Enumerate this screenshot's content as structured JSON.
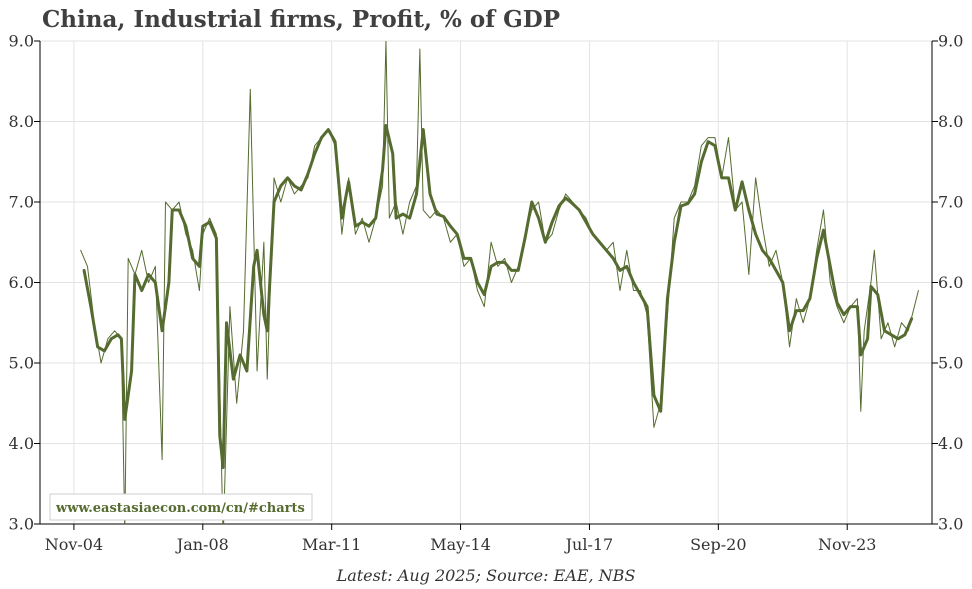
{
  "title": "China, Industrial firms, Profit, % of GDP",
  "footnote": "Latest: Aug 2025; Source: EAE, NBS",
  "watermark": "www.eastasiaecon.com/cn/#charts",
  "colors": {
    "line": "#556b2f",
    "grid": "#e3e3e3",
    "axis": "#000000"
  },
  "chart_data": {
    "type": "line",
    "title": "China, Industrial firms, Profit, % of GDP",
    "xlabel": "",
    "ylabel": "",
    "ylim": [
      3.0,
      9.0
    ],
    "xlim": [
      "2004-01",
      "2025-12"
    ],
    "yticks": [
      "3.0",
      "4.0",
      "5.0",
      "6.0",
      "7.0",
      "8.0",
      "9.0"
    ],
    "xticks": [
      {
        "label": "Nov-04",
        "date": "2004-11"
      },
      {
        "label": "Jan-08",
        "date": "2008-01"
      },
      {
        "label": "Mar-11",
        "date": "2011-03"
      },
      {
        "label": "May-14",
        "date": "2014-05"
      },
      {
        "label": "Jul-17",
        "date": "2017-07"
      },
      {
        "label": "Sep-20",
        "date": "2020-09"
      },
      {
        "label": "Nov-23",
        "date": "2023-11"
      }
    ],
    "grid": true,
    "series": [
      {
        "style": "thin",
        "points": [
          [
            "2005-01",
            6.4
          ],
          [
            "2005-03",
            6.2
          ],
          [
            "2005-05",
            5.5
          ],
          [
            "2005-07",
            5.0
          ],
          [
            "2005-09",
            5.3
          ],
          [
            "2005-11",
            5.4
          ],
          [
            "2006-01",
            5.3
          ],
          [
            "2006-02",
            2.9
          ],
          [
            "2006-03",
            6.3
          ],
          [
            "2006-05",
            6.1
          ],
          [
            "2006-07",
            6.4
          ],
          [
            "2006-09",
            6.0
          ],
          [
            "2006-11",
            6.2
          ],
          [
            "2007-01",
            3.8
          ],
          [
            "2007-02",
            7.0
          ],
          [
            "2007-04",
            6.9
          ],
          [
            "2007-06",
            7.0
          ],
          [
            "2007-08",
            6.6
          ],
          [
            "2007-10",
            6.4
          ],
          [
            "2007-12",
            5.9
          ],
          [
            "2008-01",
            6.6
          ],
          [
            "2008-03",
            6.8
          ],
          [
            "2008-05",
            6.6
          ],
          [
            "2008-07",
            2.8
          ],
          [
            "2008-09",
            5.7
          ],
          [
            "2008-11",
            4.5
          ],
          [
            "2009-01",
            5.4
          ],
          [
            "2009-03",
            8.4
          ],
          [
            "2009-05",
            4.9
          ],
          [
            "2009-07",
            6.5
          ],
          [
            "2009-08",
            4.8
          ],
          [
            "2009-10",
            7.3
          ],
          [
            "2009-12",
            7.0
          ],
          [
            "2010-02",
            7.3
          ],
          [
            "2010-04",
            7.1
          ],
          [
            "2010-06",
            7.2
          ],
          [
            "2010-08",
            7.3
          ],
          [
            "2010-10",
            7.7
          ],
          [
            "2010-12",
            7.8
          ],
          [
            "2011-02",
            7.9
          ],
          [
            "2011-04",
            7.7
          ],
          [
            "2011-06",
            6.6
          ],
          [
            "2011-08",
            7.3
          ],
          [
            "2011-10",
            6.6
          ],
          [
            "2011-12",
            6.8
          ],
          [
            "2012-02",
            6.5
          ],
          [
            "2012-04",
            6.8
          ],
          [
            "2012-06",
            7.2
          ],
          [
            "2012-07",
            9.0
          ],
          [
            "2012-08",
            6.8
          ],
          [
            "2012-10",
            7.0
          ],
          [
            "2012-12",
            6.6
          ],
          [
            "2013-02",
            7.0
          ],
          [
            "2013-04",
            7.2
          ],
          [
            "2013-05",
            8.9
          ],
          [
            "2013-06",
            6.9
          ],
          [
            "2013-08",
            6.8
          ],
          [
            "2013-10",
            6.9
          ],
          [
            "2013-12",
            6.8
          ],
          [
            "2014-02",
            6.5
          ],
          [
            "2014-04",
            6.6
          ],
          [
            "2014-06",
            6.2
          ],
          [
            "2014-08",
            6.3
          ],
          [
            "2014-10",
            5.9
          ],
          [
            "2014-12",
            5.7
          ],
          [
            "2015-02",
            6.5
          ],
          [
            "2015-04",
            6.2
          ],
          [
            "2015-06",
            6.3
          ],
          [
            "2015-08",
            6.0
          ],
          [
            "2015-10",
            6.2
          ],
          [
            "2015-12",
            6.6
          ],
          [
            "2016-02",
            6.9
          ],
          [
            "2016-04",
            7.0
          ],
          [
            "2016-06",
            6.5
          ],
          [
            "2016-08",
            6.6
          ],
          [
            "2016-10",
            6.9
          ],
          [
            "2016-12",
            7.1
          ],
          [
            "2017-02",
            7.0
          ],
          [
            "2017-04",
            6.9
          ],
          [
            "2017-06",
            6.8
          ],
          [
            "2017-08",
            6.6
          ],
          [
            "2017-10",
            6.5
          ],
          [
            "2017-12",
            6.4
          ],
          [
            "2018-02",
            6.5
          ],
          [
            "2018-04",
            5.9
          ],
          [
            "2018-06",
            6.4
          ],
          [
            "2018-08",
            5.9
          ],
          [
            "2018-10",
            5.9
          ],
          [
            "2018-12",
            5.6
          ],
          [
            "2019-02",
            4.2
          ],
          [
            "2019-04",
            4.5
          ],
          [
            "2019-06",
            5.6
          ],
          [
            "2019-08",
            6.8
          ],
          [
            "2019-10",
            7.0
          ],
          [
            "2019-12",
            7.0
          ],
          [
            "2020-02",
            7.2
          ],
          [
            "2020-04",
            7.7
          ],
          [
            "2020-06",
            7.8
          ],
          [
            "2020-08",
            7.8
          ],
          [
            "2020-10",
            7.3
          ],
          [
            "2020-12",
            7.8
          ],
          [
            "2021-02",
            6.9
          ],
          [
            "2021-04",
            7.0
          ],
          [
            "2021-06",
            6.1
          ],
          [
            "2021-08",
            7.3
          ],
          [
            "2021-10",
            6.7
          ],
          [
            "2021-12",
            6.2
          ],
          [
            "2022-02",
            6.4
          ],
          [
            "2022-04",
            6.0
          ],
          [
            "2022-06",
            5.2
          ],
          [
            "2022-08",
            5.8
          ],
          [
            "2022-10",
            5.5
          ],
          [
            "2022-12",
            5.8
          ],
          [
            "2023-02",
            6.4
          ],
          [
            "2023-04",
            6.9
          ],
          [
            "2023-06",
            6.0
          ],
          [
            "2023-08",
            5.7
          ],
          [
            "2023-10",
            5.5
          ],
          [
            "2023-12",
            5.7
          ],
          [
            "2024-02",
            5.8
          ],
          [
            "2024-03",
            4.4
          ],
          [
            "2024-04",
            5.4
          ],
          [
            "2024-06",
            6.0
          ],
          [
            "2024-07",
            6.4
          ],
          [
            "2024-09",
            5.3
          ],
          [
            "2024-11",
            5.5
          ],
          [
            "2025-01",
            5.2
          ],
          [
            "2025-03",
            5.5
          ],
          [
            "2025-05",
            5.4
          ],
          [
            "2025-08",
            5.9
          ]
        ]
      },
      {
        "style": "thick",
        "points": [
          [
            "2005-02",
            6.15
          ],
          [
            "2005-04",
            5.7
          ],
          [
            "2005-06",
            5.2
          ],
          [
            "2005-08",
            5.15
          ],
          [
            "2005-10",
            5.3
          ],
          [
            "2005-12",
            5.35
          ],
          [
            "2006-01",
            5.3
          ],
          [
            "2006-02",
            4.3
          ],
          [
            "2006-04",
            4.9
          ],
          [
            "2006-05",
            6.1
          ],
          [
            "2006-07",
            5.9
          ],
          [
            "2006-09",
            6.1
          ],
          [
            "2006-11",
            6.0
          ],
          [
            "2007-01",
            5.4
          ],
          [
            "2007-03",
            6.0
          ],
          [
            "2007-04",
            6.9
          ],
          [
            "2007-06",
            6.9
          ],
          [
            "2007-08",
            6.7
          ],
          [
            "2007-10",
            6.3
          ],
          [
            "2007-12",
            6.2
          ],
          [
            "2008-01",
            6.7
          ],
          [
            "2008-03",
            6.75
          ],
          [
            "2008-05",
            6.55
          ],
          [
            "2008-06",
            4.1
          ],
          [
            "2008-07",
            3.7
          ],
          [
            "2008-08",
            5.5
          ],
          [
            "2008-10",
            4.8
          ],
          [
            "2008-12",
            5.1
          ],
          [
            "2009-02",
            4.9
          ],
          [
            "2009-04",
            6.2
          ],
          [
            "2009-05",
            6.4
          ],
          [
            "2009-07",
            5.6
          ],
          [
            "2009-08",
            5.4
          ],
          [
            "2009-10",
            7.0
          ],
          [
            "2009-12",
            7.2
          ],
          [
            "2010-02",
            7.3
          ],
          [
            "2010-04",
            7.2
          ],
          [
            "2010-06",
            7.15
          ],
          [
            "2010-08",
            7.35
          ],
          [
            "2010-10",
            7.6
          ],
          [
            "2010-12",
            7.8
          ],
          [
            "2011-02",
            7.9
          ],
          [
            "2011-04",
            7.75
          ],
          [
            "2011-06",
            6.8
          ],
          [
            "2011-08",
            7.25
          ],
          [
            "2011-10",
            6.7
          ],
          [
            "2011-12",
            6.75
          ],
          [
            "2012-02",
            6.7
          ],
          [
            "2012-04",
            6.8
          ],
          [
            "2012-06",
            7.4
          ],
          [
            "2012-07",
            7.95
          ],
          [
            "2012-09",
            7.6
          ],
          [
            "2012-10",
            6.8
          ],
          [
            "2012-12",
            6.85
          ],
          [
            "2013-02",
            6.8
          ],
          [
            "2013-04",
            7.1
          ],
          [
            "2013-06",
            7.9
          ],
          [
            "2013-08",
            7.1
          ],
          [
            "2013-10",
            6.85
          ],
          [
            "2013-12",
            6.82
          ],
          [
            "2014-02",
            6.7
          ],
          [
            "2014-04",
            6.6
          ],
          [
            "2014-06",
            6.3
          ],
          [
            "2014-08",
            6.3
          ],
          [
            "2014-10",
            6.0
          ],
          [
            "2014-12",
            5.85
          ],
          [
            "2015-02",
            6.2
          ],
          [
            "2015-04",
            6.25
          ],
          [
            "2015-06",
            6.25
          ],
          [
            "2015-08",
            6.15
          ],
          [
            "2015-10",
            6.15
          ],
          [
            "2015-12",
            6.55
          ],
          [
            "2016-02",
            7.0
          ],
          [
            "2016-04",
            6.8
          ],
          [
            "2016-06",
            6.5
          ],
          [
            "2016-08",
            6.75
          ],
          [
            "2016-10",
            6.95
          ],
          [
            "2016-12",
            7.05
          ],
          [
            "2017-02",
            6.98
          ],
          [
            "2017-04",
            6.9
          ],
          [
            "2017-06",
            6.75
          ],
          [
            "2017-08",
            6.6
          ],
          [
            "2017-10",
            6.5
          ],
          [
            "2017-12",
            6.4
          ],
          [
            "2018-02",
            6.3
          ],
          [
            "2018-04",
            6.15
          ],
          [
            "2018-06",
            6.2
          ],
          [
            "2018-08",
            6.0
          ],
          [
            "2018-10",
            5.85
          ],
          [
            "2018-12",
            5.7
          ],
          [
            "2019-02",
            4.6
          ],
          [
            "2019-04",
            4.4
          ],
          [
            "2019-06",
            5.8
          ],
          [
            "2019-08",
            6.5
          ],
          [
            "2019-10",
            6.95
          ],
          [
            "2019-12",
            6.98
          ],
          [
            "2020-02",
            7.1
          ],
          [
            "2020-04",
            7.5
          ],
          [
            "2020-06",
            7.75
          ],
          [
            "2020-08",
            7.7
          ],
          [
            "2020-10",
            7.3
          ],
          [
            "2020-12",
            7.3
          ],
          [
            "2021-02",
            6.9
          ],
          [
            "2021-04",
            7.25
          ],
          [
            "2021-06",
            6.9
          ],
          [
            "2021-08",
            6.6
          ],
          [
            "2021-10",
            6.4
          ],
          [
            "2021-12",
            6.3
          ],
          [
            "2022-02",
            6.15
          ],
          [
            "2022-04",
            6.0
          ],
          [
            "2022-06",
            5.4
          ],
          [
            "2022-08",
            5.65
          ],
          [
            "2022-10",
            5.65
          ],
          [
            "2022-12",
            5.8
          ],
          [
            "2023-02",
            6.3
          ],
          [
            "2023-04",
            6.65
          ],
          [
            "2023-06",
            6.2
          ],
          [
            "2023-08",
            5.75
          ],
          [
            "2023-10",
            5.6
          ],
          [
            "2023-12",
            5.7
          ],
          [
            "2024-02",
            5.7
          ],
          [
            "2024-03",
            5.1
          ],
          [
            "2024-05",
            5.3
          ],
          [
            "2024-06",
            5.95
          ],
          [
            "2024-08",
            5.85
          ],
          [
            "2024-10",
            5.4
          ],
          [
            "2024-12",
            5.35
          ],
          [
            "2025-02",
            5.3
          ],
          [
            "2025-04",
            5.35
          ],
          [
            "2025-06",
            5.55
          ]
        ]
      }
    ]
  }
}
